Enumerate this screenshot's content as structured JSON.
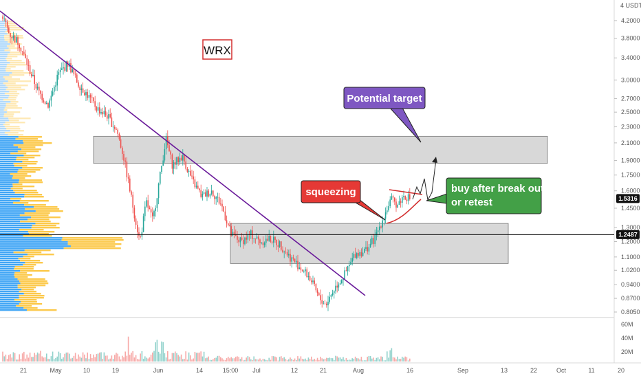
{
  "chart_data": {
    "type": "candlestick",
    "symbol": "WRX",
    "currency": "USDT",
    "grid": false,
    "price_scale": "log",
    "y_ticks": [
      "4.2000",
      "3.8000",
      "3.4000",
      "3.0000",
      "2.7000",
      "2.5000",
      "2.3000",
      "2.1000",
      "1.9000",
      "1.7500",
      "1.6000",
      "1.4500",
      "1.3000",
      "1.2000",
      "1.1000",
      "1.0200",
      "0.9400",
      "0.8700",
      "0.8050"
    ],
    "y_tick_values": [
      4.2,
      3.8,
      3.4,
      3.0,
      2.7,
      2.5,
      2.3,
      2.1,
      1.9,
      1.75,
      1.6,
      1.45,
      1.3,
      1.2,
      1.1,
      1.02,
      0.94,
      0.87,
      0.805
    ],
    "y_unit_label": "4 USDT",
    "current_price": "1.5316",
    "horizontal_line_price": "1.2487",
    "x_tick_labels": [
      "21",
      "May",
      "10",
      "19",
      "Jun",
      "14",
      "15:00",
      "Jul",
      "12",
      "21",
      "Aug",
      "16",
      "Sep",
      "13",
      "22",
      "Oct",
      "11",
      "20"
    ],
    "volume_ticks": [
      "60M",
      "40M",
      "20M"
    ],
    "price_path": [
      [
        "2021-04-13",
        4.3
      ],
      [
        "2021-04-15",
        3.9
      ],
      [
        "2021-04-18",
        3.7
      ],
      [
        "2021-04-21",
        3.2
      ],
      [
        "2021-04-24",
        2.8
      ],
      [
        "2021-04-27",
        2.6
      ],
      [
        "2021-04-30",
        3.1
      ],
      [
        "2021-05-03",
        3.3
      ],
      [
        "2021-05-06",
        2.95
      ],
      [
        "2021-05-09",
        2.75
      ],
      [
        "2021-05-12",
        2.55
      ],
      [
        "2021-05-15",
        2.45
      ],
      [
        "2021-05-18",
        2.25
      ],
      [
        "2021-05-20",
        1.95
      ],
      [
        "2021-05-23",
        1.45
      ],
      [
        "2021-05-25",
        1.2
      ],
      [
        "2021-05-27",
        1.5
      ],
      [
        "2021-05-29",
        1.35
      ],
      [
        "2021-05-31",
        1.7
      ],
      [
        "2021-06-02",
        2.15
      ],
      [
        "2021-06-04",
        1.85
      ],
      [
        "2021-06-07",
        1.95
      ],
      [
        "2021-06-10",
        1.7
      ],
      [
        "2021-06-13",
        1.55
      ],
      [
        "2021-06-16",
        1.6
      ],
      [
        "2021-06-19",
        1.48
      ],
      [
        "2021-06-22",
        1.25
      ],
      [
        "2021-06-25",
        1.2
      ],
      [
        "2021-06-28",
        1.25
      ],
      [
        "2021-07-01",
        1.2
      ],
      [
        "2021-07-04",
        1.22
      ],
      [
        "2021-07-07",
        1.18
      ],
      [
        "2021-07-10",
        1.1
      ],
      [
        "2021-07-13",
        1.04
      ],
      [
        "2021-07-16",
        0.98
      ],
      [
        "2021-07-19",
        0.87
      ],
      [
        "2021-07-21",
        0.84
      ],
      [
        "2021-07-24",
        0.93
      ],
      [
        "2021-07-27",
        1.0
      ],
      [
        "2021-07-30",
        1.12
      ],
      [
        "2021-08-02",
        1.14
      ],
      [
        "2021-08-05",
        1.22
      ],
      [
        "2021-08-08",
        1.4
      ],
      [
        "2021-08-10",
        1.52
      ],
      [
        "2021-08-12",
        1.48
      ],
      [
        "2021-08-14",
        1.56
      ],
      [
        "2021-08-16",
        1.53
      ]
    ],
    "annotations": {
      "title_box": "WRX",
      "potential_target": "Potential target",
      "squeezing": "squeezing",
      "buy_note": [
        "buy after break out",
        "or retest"
      ]
    },
    "zones": [
      {
        "name": "resistance-zone",
        "from_price": 1.87,
        "to_price": 2.18
      },
      {
        "name": "support-zone",
        "from_price": 1.06,
        "to_price": 1.33
      }
    ],
    "colors": {
      "up_candle": "#26a69a",
      "down_candle": "#ef5350",
      "trendline": "#6a1b9a",
      "zone_fill": "#b8b8b8",
      "target_box": "#7e57c2",
      "squeezing_box": "#e53935",
      "buy_box": "#43a047",
      "volume_profile_blue": "#2196f3",
      "volume_profile_yellow": "#fbc02d"
    }
  }
}
